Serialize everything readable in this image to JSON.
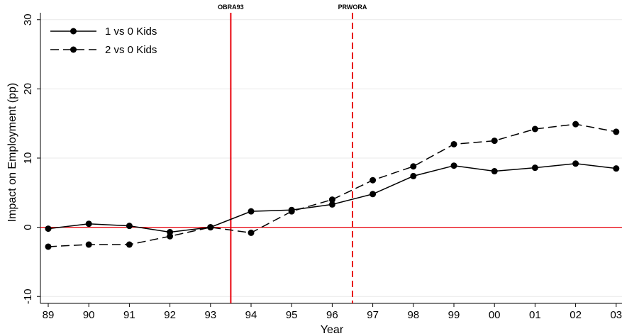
{
  "chart_data": {
    "type": "line",
    "title": "",
    "xlabel": "Year",
    "ylabel": "Impact on Employment (pp)",
    "categories": [
      "89",
      "90",
      "91",
      "92",
      "93",
      "94",
      "95",
      "96",
      "97",
      "98",
      "99",
      "00",
      "01",
      "02",
      "03"
    ],
    "yticks": [
      "-10",
      "0",
      "10",
      "20",
      "30"
    ],
    "ylim": [
      -11,
      31
    ],
    "grid": "horizontal",
    "legend_position": "top-left",
    "series": [
      {
        "name": "1 vs 0 Kids",
        "style": "solid",
        "color": "#000000",
        "values": [
          -0.2,
          0.5,
          0.2,
          -0.7,
          0.0,
          2.3,
          2.5,
          3.3,
          4.8,
          7.4,
          8.9,
          8.1,
          8.6,
          9.2,
          8.5
        ]
      },
      {
        "name": "2 vs 0 Kids",
        "style": "dashed",
        "color": "#000000",
        "values": [
          -2.8,
          -2.5,
          -2.5,
          -1.3,
          0.0,
          -0.8,
          2.3,
          4.0,
          6.8,
          8.8,
          12.0,
          12.5,
          14.2,
          14.9,
          13.8
        ]
      }
    ],
    "reference_lines": [
      {
        "label": "OBRA93",
        "x": 93.5,
        "style": "solid",
        "color": "#e8000b"
      },
      {
        "label": "PRWORA",
        "x": 96.5,
        "style": "dashed",
        "color": "#e8000b"
      }
    ],
    "zero_line": {
      "y": 0,
      "color": "#e8000b"
    }
  }
}
